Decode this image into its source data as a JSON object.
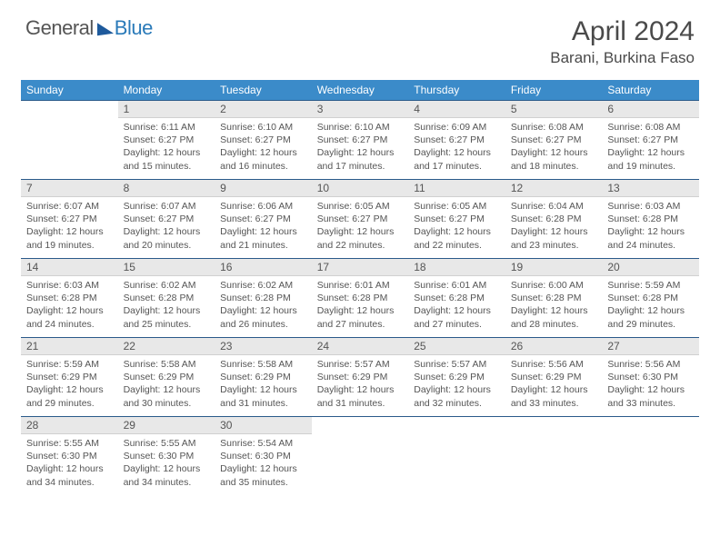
{
  "logo": {
    "text1": "General",
    "text2": "Blue"
  },
  "title": {
    "month": "April 2024",
    "location": "Barani, Burkina Faso"
  },
  "colors": {
    "header_bg": "#3b8bc9",
    "daynum_bg": "#e8e8e8",
    "border_top": "#2a5a8a",
    "text": "#555555",
    "logo_blue": "#2a7ab9"
  },
  "dayHeaders": [
    "Sunday",
    "Monday",
    "Tuesday",
    "Wednesday",
    "Thursday",
    "Friday",
    "Saturday"
  ],
  "weeks": [
    {
      "nums": [
        "",
        "1",
        "2",
        "3",
        "4",
        "5",
        "6"
      ],
      "cells": [
        null,
        {
          "sr": "6:11 AM",
          "ss": "6:27 PM",
          "dl": "12 hours and 15 minutes."
        },
        {
          "sr": "6:10 AM",
          "ss": "6:27 PM",
          "dl": "12 hours and 16 minutes."
        },
        {
          "sr": "6:10 AM",
          "ss": "6:27 PM",
          "dl": "12 hours and 17 minutes."
        },
        {
          "sr": "6:09 AM",
          "ss": "6:27 PM",
          "dl": "12 hours and 17 minutes."
        },
        {
          "sr": "6:08 AM",
          "ss": "6:27 PM",
          "dl": "12 hours and 18 minutes."
        },
        {
          "sr": "6:08 AM",
          "ss": "6:27 PM",
          "dl": "12 hours and 19 minutes."
        }
      ]
    },
    {
      "nums": [
        "7",
        "8",
        "9",
        "10",
        "11",
        "12",
        "13"
      ],
      "cells": [
        {
          "sr": "6:07 AM",
          "ss": "6:27 PM",
          "dl": "12 hours and 19 minutes."
        },
        {
          "sr": "6:07 AM",
          "ss": "6:27 PM",
          "dl": "12 hours and 20 minutes."
        },
        {
          "sr": "6:06 AM",
          "ss": "6:27 PM",
          "dl": "12 hours and 21 minutes."
        },
        {
          "sr": "6:05 AM",
          "ss": "6:27 PM",
          "dl": "12 hours and 22 minutes."
        },
        {
          "sr": "6:05 AM",
          "ss": "6:27 PM",
          "dl": "12 hours and 22 minutes."
        },
        {
          "sr": "6:04 AM",
          "ss": "6:28 PM",
          "dl": "12 hours and 23 minutes."
        },
        {
          "sr": "6:03 AM",
          "ss": "6:28 PM",
          "dl": "12 hours and 24 minutes."
        }
      ]
    },
    {
      "nums": [
        "14",
        "15",
        "16",
        "17",
        "18",
        "19",
        "20"
      ],
      "cells": [
        {
          "sr": "6:03 AM",
          "ss": "6:28 PM",
          "dl": "12 hours and 24 minutes."
        },
        {
          "sr": "6:02 AM",
          "ss": "6:28 PM",
          "dl": "12 hours and 25 minutes."
        },
        {
          "sr": "6:02 AM",
          "ss": "6:28 PM",
          "dl": "12 hours and 26 minutes."
        },
        {
          "sr": "6:01 AM",
          "ss": "6:28 PM",
          "dl": "12 hours and 27 minutes."
        },
        {
          "sr": "6:01 AM",
          "ss": "6:28 PM",
          "dl": "12 hours and 27 minutes."
        },
        {
          "sr": "6:00 AM",
          "ss": "6:28 PM",
          "dl": "12 hours and 28 minutes."
        },
        {
          "sr": "5:59 AM",
          "ss": "6:28 PM",
          "dl": "12 hours and 29 minutes."
        }
      ]
    },
    {
      "nums": [
        "21",
        "22",
        "23",
        "24",
        "25",
        "26",
        "27"
      ],
      "cells": [
        {
          "sr": "5:59 AM",
          "ss": "6:29 PM",
          "dl": "12 hours and 29 minutes."
        },
        {
          "sr": "5:58 AM",
          "ss": "6:29 PM",
          "dl": "12 hours and 30 minutes."
        },
        {
          "sr": "5:58 AM",
          "ss": "6:29 PM",
          "dl": "12 hours and 31 minutes."
        },
        {
          "sr": "5:57 AM",
          "ss": "6:29 PM",
          "dl": "12 hours and 31 minutes."
        },
        {
          "sr": "5:57 AM",
          "ss": "6:29 PM",
          "dl": "12 hours and 32 minutes."
        },
        {
          "sr": "5:56 AM",
          "ss": "6:29 PM",
          "dl": "12 hours and 33 minutes."
        },
        {
          "sr": "5:56 AM",
          "ss": "6:30 PM",
          "dl": "12 hours and 33 minutes."
        }
      ]
    },
    {
      "nums": [
        "28",
        "29",
        "30",
        "",
        "",
        "",
        ""
      ],
      "cells": [
        {
          "sr": "5:55 AM",
          "ss": "6:30 PM",
          "dl": "12 hours and 34 minutes."
        },
        {
          "sr": "5:55 AM",
          "ss": "6:30 PM",
          "dl": "12 hours and 34 minutes."
        },
        {
          "sr": "5:54 AM",
          "ss": "6:30 PM",
          "dl": "12 hours and 35 minutes."
        },
        null,
        null,
        null,
        null
      ]
    }
  ],
  "labels": {
    "sunrise": "Sunrise: ",
    "sunset": "Sunset: ",
    "daylight": "Daylight: "
  }
}
